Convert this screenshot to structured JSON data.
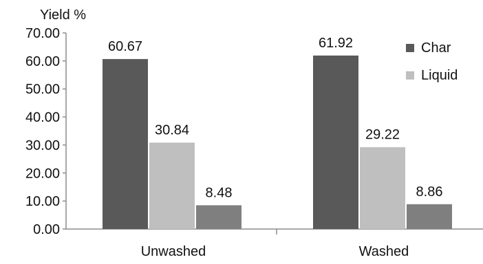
{
  "chart_data": {
    "type": "bar",
    "title": "",
    "xlabel": "",
    "ylabel": "Yield %",
    "categories": [
      "Unwashed",
      "Washed"
    ],
    "series": [
      {
        "name": "Char",
        "values": [
          60.67,
          61.92
        ],
        "color": "#595959"
      },
      {
        "name": "Liquid",
        "values": [
          30.84,
          29.22
        ],
        "color": "#bfbfbf"
      },
      {
        "name": "",
        "values": [
          8.48,
          8.86
        ],
        "color": "#7f7f7f"
      }
    ],
    "ylim": [
      0,
      70
    ],
    "yticks": [
      "0.00",
      "10.00",
      "20.00",
      "30.00",
      "40.00",
      "50.00",
      "60.00",
      "70.00"
    ],
    "data_labels": [
      [
        "60.67",
        "61.92"
      ],
      [
        "30.84",
        "29.22"
      ],
      [
        "8.48",
        "8.86"
      ]
    ],
    "grid": false,
    "legend_position": "top-right"
  }
}
